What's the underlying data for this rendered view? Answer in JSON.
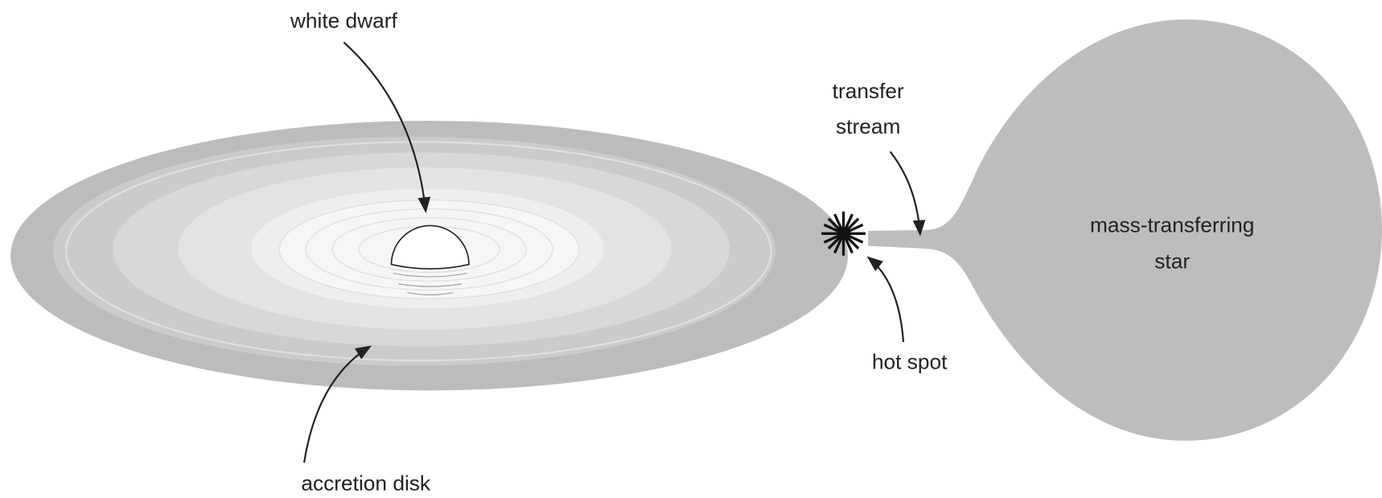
{
  "labels": {
    "white_dwarf": "white dwarf",
    "transfer_stream": [
      "transfer",
      "stream"
    ],
    "mass_transferring_star": [
      "mass-transferring",
      "star"
    ],
    "hot_spot": "hot spot",
    "accretion_disk": "accretion disk"
  }
}
